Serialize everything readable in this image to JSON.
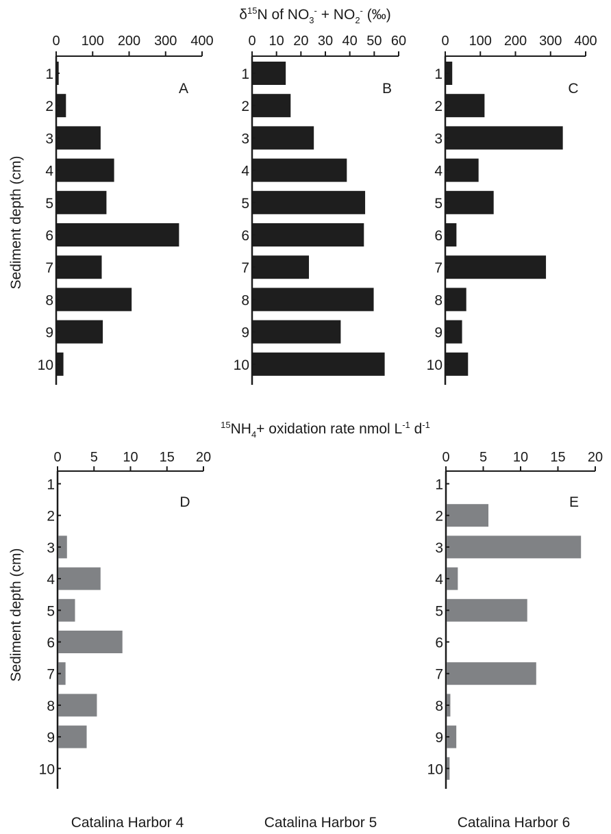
{
  "figure": {
    "top_title": "δ15N of NO3- + NO2- (‰)",
    "top_title_parts": {
      "delta": "δ",
      "sup15": "15",
      "n": "N of NO",
      "sub3": "3",
      "sup_minus1": "-",
      "plus": " + NO",
      "sub2": "2",
      "sup_minus2": "-",
      "permil": " (‰)"
    },
    "bottom_title": "15NH4+ oxidation rate nmol L-1 d-1",
    "bottom_title_parts": {
      "sup15": "15",
      "nh": "NH",
      "sub4": "4",
      "rest1": "+ oxidation rate nmol L",
      "sup_m1a": "-1",
      "rest2": " d",
      "sup_m1b": "-1"
    },
    "ylabel": "Sediment depth (cm)",
    "site_labels": [
      "Catalina Harbor 4",
      "Catalina Harbor 5",
      "Catalina Harbor 6"
    ]
  },
  "chart_data": [
    {
      "type": "bar",
      "panel": "A",
      "orientation": "horizontal",
      "categories": [
        "1",
        "2",
        "3",
        "4",
        "5",
        "6",
        "7",
        "8",
        "9",
        "10"
      ],
      "values": [
        5,
        25,
        120,
        157,
        136,
        335,
        123,
        205,
        126,
        18
      ],
      "xlim": [
        0,
        400
      ],
      "xticks": [
        "0",
        "100",
        "200",
        "300",
        "400"
      ],
      "ylabel": "Sediment depth (cm)",
      "bar_color": "#1e1e1e",
      "grid": false
    },
    {
      "type": "bar",
      "panel": "B",
      "orientation": "horizontal",
      "categories": [
        "1",
        "2",
        "3",
        "4",
        "5",
        "6",
        "7",
        "8",
        "9",
        "10"
      ],
      "values": [
        13.5,
        15.5,
        25,
        38.5,
        46,
        45.5,
        23,
        49.5,
        36,
        54
      ],
      "xlim": [
        0,
        60
      ],
      "xticks": [
        "0",
        "10",
        "20",
        "30",
        "40",
        "50",
        "60"
      ],
      "bar_color": "#1e1e1e",
      "grid": false
    },
    {
      "type": "bar",
      "panel": "C",
      "orientation": "horizontal",
      "categories": [
        "1",
        "2",
        "3",
        "4",
        "5",
        "6",
        "7",
        "8",
        "9",
        "10"
      ],
      "values": [
        18,
        110,
        333,
        93,
        136,
        30,
        285,
        58,
        46,
        63
      ],
      "xlim": [
        0,
        400
      ],
      "xticks": [
        "0",
        "100",
        "200",
        "300",
        "400"
      ],
      "bar_color": "#1e1e1e",
      "grid": false
    },
    {
      "type": "bar",
      "panel": "D",
      "orientation": "horizontal",
      "site": "Catalina Harbor 4",
      "categories": [
        "1",
        "2",
        "3",
        "4",
        "5",
        "6",
        "7",
        "8",
        "9",
        "10"
      ],
      "values": [
        0,
        0,
        1.2,
        5.8,
        2.3,
        8.8,
        1.0,
        5.3,
        3.9,
        0
      ],
      "xlim": [
        0,
        20
      ],
      "xticks": [
        "0",
        "5",
        "10",
        "15",
        "20"
      ],
      "ylabel": "Sediment depth (cm)",
      "bar_color": "#808285",
      "grid": false
    },
    {
      "type": "bar",
      "panel": "E",
      "orientation": "horizontal",
      "site": "Catalina Harbor 6",
      "categories": [
        "1",
        "2",
        "3",
        "4",
        "5",
        "6",
        "7",
        "8",
        "9",
        "10"
      ],
      "values": [
        0,
        5.6,
        18.0,
        1.5,
        10.8,
        0,
        12.0,
        0.5,
        1.3,
        0.4
      ],
      "xlim": [
        0,
        20
      ],
      "xticks": [
        "0",
        "5",
        "10",
        "15",
        "20"
      ],
      "bar_color": "#808285",
      "grid": false
    }
  ]
}
